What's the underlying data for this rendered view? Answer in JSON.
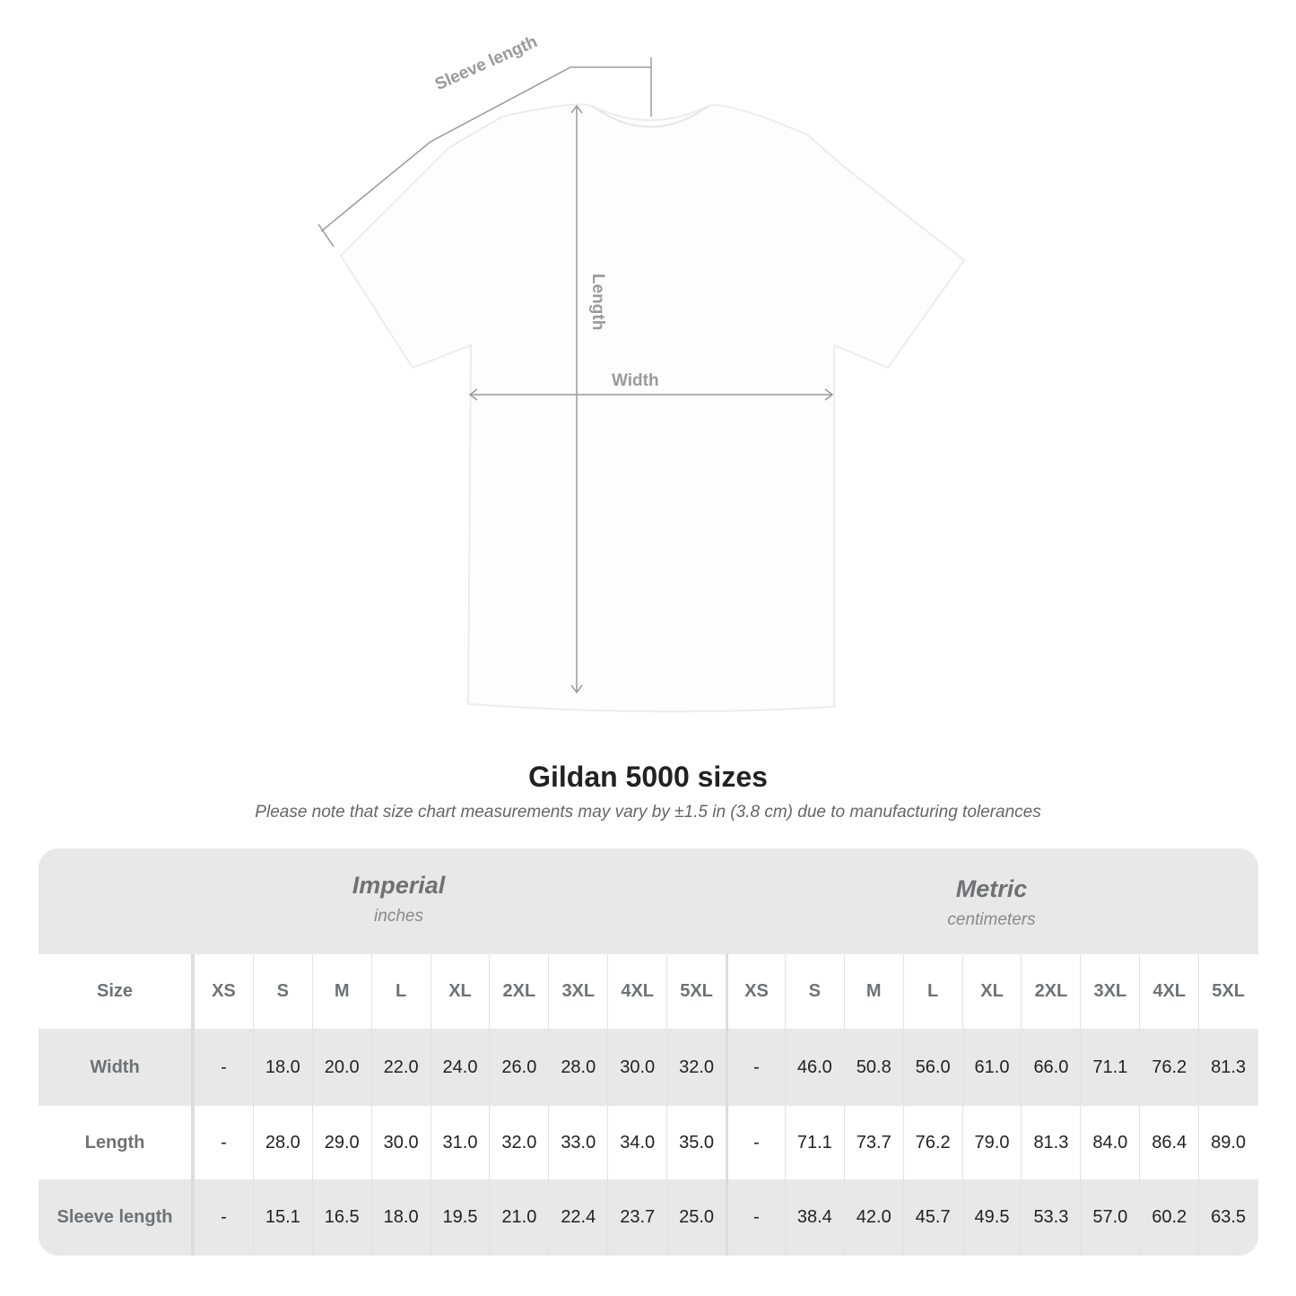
{
  "diagram": {
    "labels": {
      "sleeve": "Sleeve length",
      "length": "Length",
      "width": "Width"
    },
    "line_color": "#9a9a9a"
  },
  "title": "Gildan 5000 sizes",
  "note": "Please note that size chart measurements may vary by ±1.5 in (3.8 cm) due to manufacturing tolerances",
  "table": {
    "imperial": {
      "name": "Imperial",
      "unit": "inches"
    },
    "metric": {
      "name": "Metric",
      "unit": "centimeters"
    },
    "size_label": "Size",
    "sizes": [
      "XS",
      "S",
      "M",
      "L",
      "XL",
      "2XL",
      "3XL",
      "4XL",
      "5XL"
    ],
    "rows": [
      {
        "label": "Width",
        "imperial": [
          "-",
          "18.0",
          "20.0",
          "22.0",
          "24.0",
          "26.0",
          "28.0",
          "30.0",
          "32.0"
        ],
        "metric": [
          "-",
          "46.0",
          "50.8",
          "56.0",
          "61.0",
          "66.0",
          "71.1",
          "76.2",
          "81.3"
        ]
      },
      {
        "label": "Length",
        "imperial": [
          "-",
          "28.0",
          "29.0",
          "30.0",
          "31.0",
          "32.0",
          "33.0",
          "34.0",
          "35.0"
        ],
        "metric": [
          "-",
          "71.1",
          "73.7",
          "76.2",
          "79.0",
          "81.3",
          "84.0",
          "86.4",
          "89.0"
        ]
      },
      {
        "label": "Sleeve length",
        "imperial": [
          "-",
          "15.1",
          "16.5",
          "18.0",
          "19.5",
          "21.0",
          "22.4",
          "23.7",
          "25.0"
        ],
        "metric": [
          "-",
          "38.4",
          "42.0",
          "45.7",
          "49.5",
          "53.3",
          "57.0",
          "60.2",
          "63.5"
        ]
      }
    ]
  }
}
